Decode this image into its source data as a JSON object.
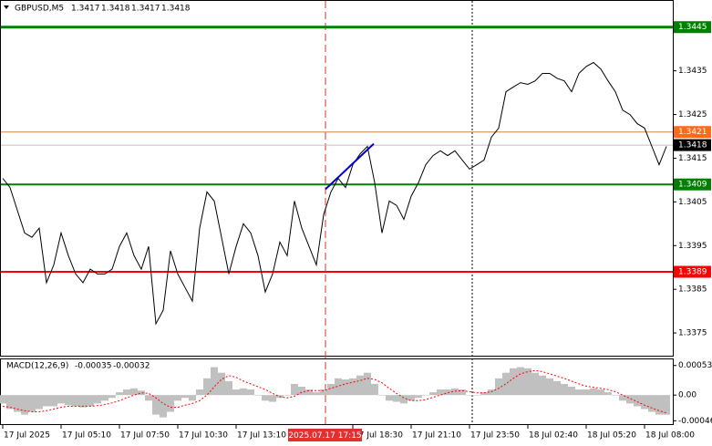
{
  "chart_data": [
    {
      "type": "line",
      "title": "GBPUSD,M5",
      "ohlc": [
        1.3417,
        1.3418,
        1.3417,
        1.3418
      ],
      "color": "#000000",
      "categories": [
        "17 Jul 2025",
        null,
        null,
        null,
        null,
        null,
        null,
        null,
        "17 Jul 05:10",
        null,
        null,
        null,
        null,
        null,
        null,
        null,
        "17 Jul 07:50",
        null,
        null,
        null,
        null,
        null,
        null,
        null,
        "17 Jul 10:30",
        null,
        null,
        null,
        null,
        null,
        null,
        null,
        "17 Jul 13:10",
        null,
        null,
        null,
        null,
        null,
        null,
        null,
        null,
        null,
        null,
        null,
        null,
        null,
        null,
        null,
        "17 Jul 18:30",
        null,
        null,
        null,
        null,
        null,
        null,
        null,
        "17 Jul 21:10",
        null,
        null,
        null,
        null,
        null,
        null,
        null,
        "17 Jul 23:50",
        null,
        null,
        null,
        null,
        null,
        null,
        null,
        "18 Jul 02:40",
        null,
        null,
        null,
        null,
        null,
        null,
        null,
        "18 Jul 05:20",
        null,
        null,
        null,
        null,
        null,
        null,
        null,
        "18 Jul 08:00",
        null,
        null,
        null
      ],
      "values": [
        1.34104,
        1.34083,
        1.34031,
        1.33979,
        1.33969,
        1.3399,
        1.33865,
        1.33906,
        1.33979,
        1.33927,
        1.33885,
        1.33865,
        1.33896,
        1.33885,
        1.33885,
        1.33896,
        1.33948,
        1.33979,
        1.33927,
        1.33896,
        1.33948,
        1.33771,
        1.33802,
        1.33938,
        1.33885,
        1.33854,
        1.33823,
        1.3399,
        1.34073,
        1.34052,
        1.33969,
        1.33885,
        1.33948,
        1.34,
        1.33979,
        1.33927,
        1.33844,
        1.33885,
        1.33958,
        1.33927,
        1.34052,
        1.3399,
        1.33948,
        1.33906,
        1.34021,
        1.34073,
        1.34104,
        1.34083,
        1.34135,
        1.3416,
        1.34177,
        1.34094,
        1.33979,
        1.34052,
        1.34042,
        1.3401,
        1.34063,
        1.34094,
        1.34135,
        1.34156,
        1.34167,
        1.34156,
        1.34167,
        1.34146,
        1.34125,
        1.34135,
        1.34146,
        1.34198,
        1.34219,
        1.34302,
        1.34313,
        1.34323,
        1.34319,
        1.34327,
        1.34344,
        1.34344,
        1.34333,
        1.34327,
        1.34302,
        1.34344,
        1.3436,
        1.34369,
        1.34354,
        1.34327,
        1.34302,
        1.3426,
        1.3425,
        1.34229,
        1.34219,
        1.34177,
        1.34135,
        1.34177
      ],
      "ylim": [
        1.33698,
        1.3451
      ],
      "yticks": [
        1.3375,
        1.3385,
        1.3395,
        1.3405,
        1.3415,
        1.3425,
        1.3435
      ],
      "levels": [
        {
          "value": 1.3445,
          "color": "#008000",
          "line_width": 3,
          "label_color": "#008000"
        },
        {
          "value": 1.3421,
          "color": "#cd853f",
          "line_width": 1,
          "label_color": "#ff6a1a"
        },
        {
          "value": 1.3418,
          "color": "#c0c0c0",
          "line_width": 1,
          "label_color": "#000000"
        },
        {
          "value": 1.3409,
          "color": "#008000",
          "line_width": 2,
          "label_color": "#008000"
        },
        {
          "value": 1.3389,
          "color": "#ff0000",
          "line_width": 2,
          "label_color": "#ff0000"
        }
      ],
      "trendline": {
        "color": "#0000cd",
        "values": [
          1.34079,
          1.34183
        ]
      },
      "cursor_label": "2025.07.17 17:15"
    },
    {
      "type": "macd",
      "title": "MACD(12,26,9)",
      "readout": [
        -0.00035,
        -0.00032
      ],
      "histogram_color": "#c0c0c0",
      "signal_color": "#ff0000",
      "histogram": [
        -0.00015,
        -0.00025,
        -0.0003,
        -0.00035,
        -0.0003,
        -0.00025,
        -0.0002,
        -0.0002,
        -0.00015,
        -0.00018,
        -0.0002,
        -0.00022,
        -0.0002,
        -0.00015,
        -0.0001,
        -5e-05,
        5e-05,
        0.0001,
        0.00012,
        8e-05,
        -0.0001,
        -0.00035,
        -0.0004,
        -0.0003,
        -0.0001,
        -5e-05,
        -0.0001,
        0.0001,
        0.0003,
        0.0005,
        0.0004,
        0.00025,
        0.0001,
        0.00012,
        0.0001,
        0,
        -0.0001,
        -0.00012,
        -5e-05,
        0,
        0.0002,
        0.00015,
        0.0001,
        5e-05,
        0.0001,
        0.0002,
        0.0003,
        0.00028,
        0.0003,
        0.00035,
        0.0004,
        0.0002,
        0,
        -0.0001,
        -0.00012,
        -0.00015,
        -0.0001,
        -5e-05,
        0,
        5e-05,
        0.0001,
        0.0001,
        0.00012,
        0.0001,
        0,
        0,
        5e-05,
        0.0001,
        0.0003,
        0.0004,
        0.00048,
        0.0005,
        0.00048,
        0.0004,
        0.00035,
        0.0003,
        0.00025,
        0.0002,
        0.00015,
        0.0001,
        0.0001,
        0.00012,
        0.0001,
        5e-05,
        0,
        -0.0001,
        -0.00015,
        -0.0002,
        -0.00025,
        -0.0003,
        -0.00035,
        -0.00035
      ],
      "signal": [
        -0.0002,
        -0.00022,
        -0.00025,
        -0.00028,
        -0.0003,
        -0.0003,
        -0.00028,
        -0.00025,
        -0.00022,
        -0.0002,
        -0.0002,
        -0.0002,
        -0.0002,
        -0.00019,
        -0.00017,
        -0.00014,
        -0.0001,
        -5e-05,
        0,
        4e-05,
        3e-05,
        -5e-05,
        -0.00015,
        -0.00022,
        -0.00022,
        -0.00018,
        -0.00015,
        -0.0001,
        0,
        0.00015,
        0.00028,
        0.00035,
        0.00032,
        0.00025,
        0.0002,
        0.00015,
        0.0001,
        3e-05,
        -3e-05,
        -5e-05,
        -2e-05,
        5e-05,
        8e-05,
        8e-05,
        8e-05,
        0.00012,
        0.00016,
        0.0002,
        0.00023,
        0.00026,
        0.0003,
        0.00028,
        0.00022,
        0.00012,
        3e-05,
        -5e-05,
        -0.0001,
        -0.0001,
        -8e-05,
        -4e-05,
        0,
        4e-05,
        7e-05,
        8e-05,
        6e-05,
        4e-05,
        4e-05,
        6e-05,
        0.00012,
        0.0002,
        0.0003,
        0.00038,
        0.00042,
        0.00044,
        0.00042,
        0.00038,
        0.00034,
        0.0003,
        0.00025,
        0.0002,
        0.00016,
        0.00014,
        0.00012,
        0.0001,
        6e-05,
        0,
        -6e-05,
        -0.00012,
        -0.00018,
        -0.00023,
        -0.00028,
        -0.00032
      ],
      "ylim": [
        -0.00052,
        0.00064
      ],
      "yticks": [
        0.00053,
        {
          "value": 0,
          "label": "0.00"
        },
        -0.00046
      ]
    }
  ]
}
